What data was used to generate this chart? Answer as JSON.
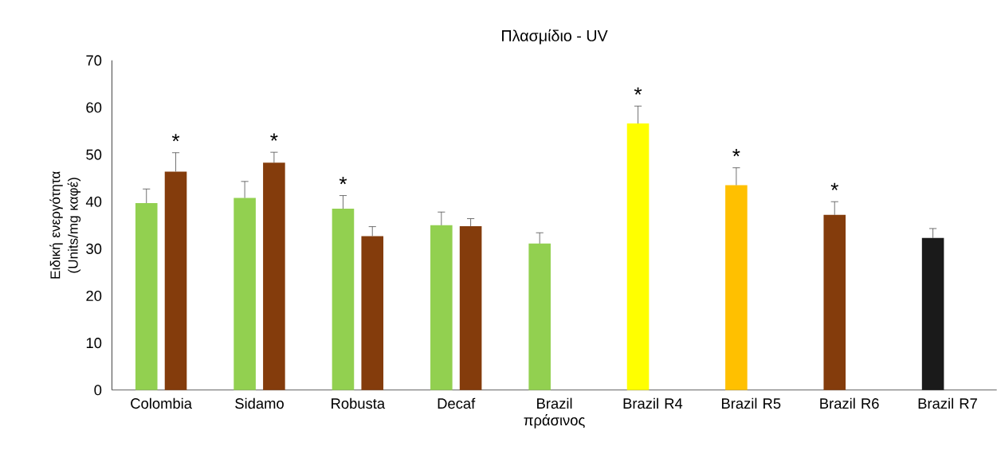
{
  "chart_data": {
    "type": "bar",
    "title": "Πλασμίδιο - UV",
    "ylabel": "Ειδική ενεργότητα (Units/mg καφέ)",
    "categories": [
      "Colombia",
      "Sidamo",
      "Robusta",
      "Decaf",
      "Brazil πράσινος",
      "Brazil R4",
      "Brazil R5",
      "Brazil R6",
      "Brazil R7"
    ],
    "series": [
      {
        "colors": [
          "#92d050",
          "#92d050",
          "#92d050",
          "#92d050",
          "#92d050",
          "#ffff00",
          "#ffc000",
          "#843c0c",
          "#1a1a1a"
        ],
        "values": [
          39.7,
          40.8,
          38.5,
          35.0,
          31.1,
          56.6,
          43.5,
          37.2,
          32.3
        ],
        "errors": [
          3.0,
          3.5,
          2.8,
          2.8,
          2.3,
          3.7,
          3.7,
          2.8,
          2.0
        ]
      },
      {
        "color": "#843c0c",
        "values": [
          46.4,
          48.3,
          32.7,
          34.8,
          null,
          null,
          null,
          null,
          null
        ],
        "errors": [
          4.0,
          2.2,
          2.0,
          1.6,
          null,
          null,
          null,
          null,
          null
        ]
      }
    ],
    "ylim": [
      0,
      70
    ],
    "yticks": [
      0,
      10,
      20,
      30,
      40,
      50,
      60,
      70
    ],
    "grid": false,
    "annotations": [
      "*",
      "*",
      "*",
      "*",
      "*",
      "*"
    ]
  }
}
